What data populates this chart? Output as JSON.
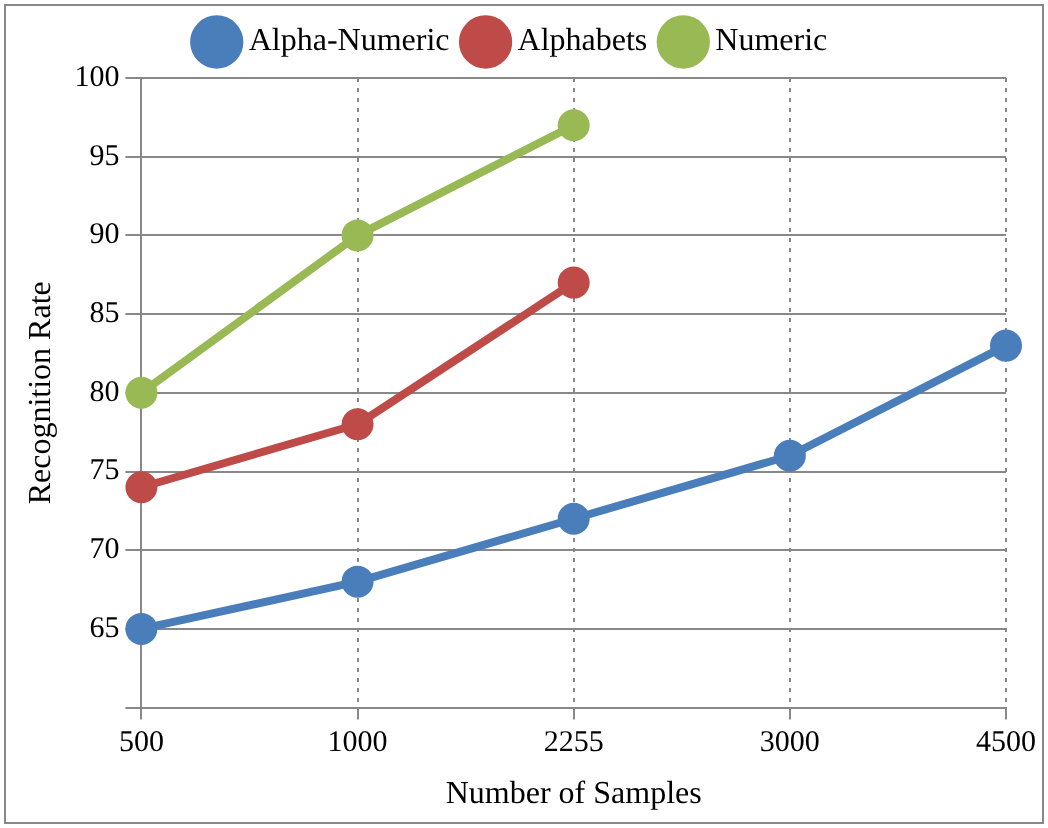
{
  "chart_data": {
    "type": "line",
    "xlabel": "Number of Samples",
    "ylabel": "Recognition Rate",
    "categories": [
      "500",
      "1000",
      "2255",
      "3000",
      "4500"
    ],
    "series": [
      {
        "name": "Alpha-Numeric",
        "color": "#4a7ebb",
        "values": [
          65,
          68,
          72,
          76,
          83
        ]
      },
      {
        "name": "Alphabets",
        "color": "#be4b48",
        "values": [
          74,
          78,
          87,
          null,
          null
        ]
      },
      {
        "name": "Numeric",
        "color": "#98b954",
        "values": [
          80,
          90,
          97,
          null,
          null
        ]
      }
    ],
    "ylim": [
      60,
      100
    ],
    "yticks": [
      {
        "value": 60,
        "label": null
      },
      65,
      70,
      75,
      80,
      85,
      90,
      95,
      100
    ],
    "grid": true,
    "legend": "top",
    "marker": "circle",
    "line_style": "solid"
  }
}
